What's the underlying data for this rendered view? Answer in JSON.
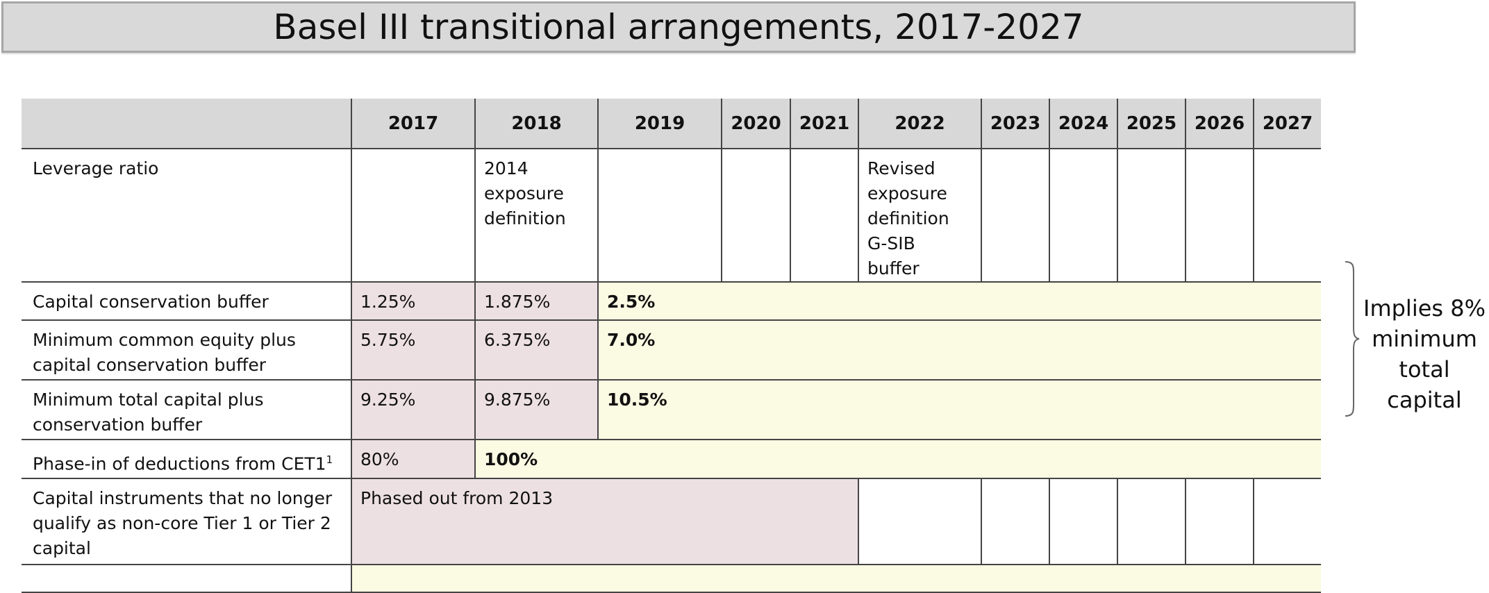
{
  "title": "Basel III transitional arrangements, 2017-2027",
  "columns": [
    "",
    "2017",
    "2018",
    "2019",
    "2020",
    "2021",
    "2022",
    "2023",
    "2024",
    "2025",
    "2026",
    "2027"
  ],
  "rows": {
    "leverage": {
      "label": "Leverage ratio",
      "y2018": "2014 exposure definition",
      "y2022": "Revised exposure definition G-SIB buffer"
    },
    "ccb": {
      "label": "Capital conservation buffer",
      "y2017": "1.25%",
      "y2018": "1.875%",
      "y2019": "2.5%"
    },
    "mce": {
      "label": "Minimum common equity plus capital conservation buffer",
      "y2017": "5.75%",
      "y2018": "6.375%",
      "y2019": "7.0%"
    },
    "mtc": {
      "label": "Minimum total capital plus conservation buffer",
      "y2017": "9.25%",
      "y2018": "9.875%",
      "y2019": "10.5%"
    },
    "phase": {
      "label": "Phase-in of deductions from CET1",
      "footnote": "1",
      "y2017": "80%",
      "y2018": "100%"
    },
    "instruments": {
      "label": "Capital instruments that no longer qualify as non-core Tier 1 or Tier 2 capital",
      "span": "Phased out from 2013"
    }
  },
  "brace_note": "Implies 8% minimum total capital",
  "colors": {
    "header_bg": "#d8d8d8",
    "transitional": "#ede0e3",
    "fully_phased": "#fbfae3",
    "title_bg": "#d9d9d9"
  }
}
